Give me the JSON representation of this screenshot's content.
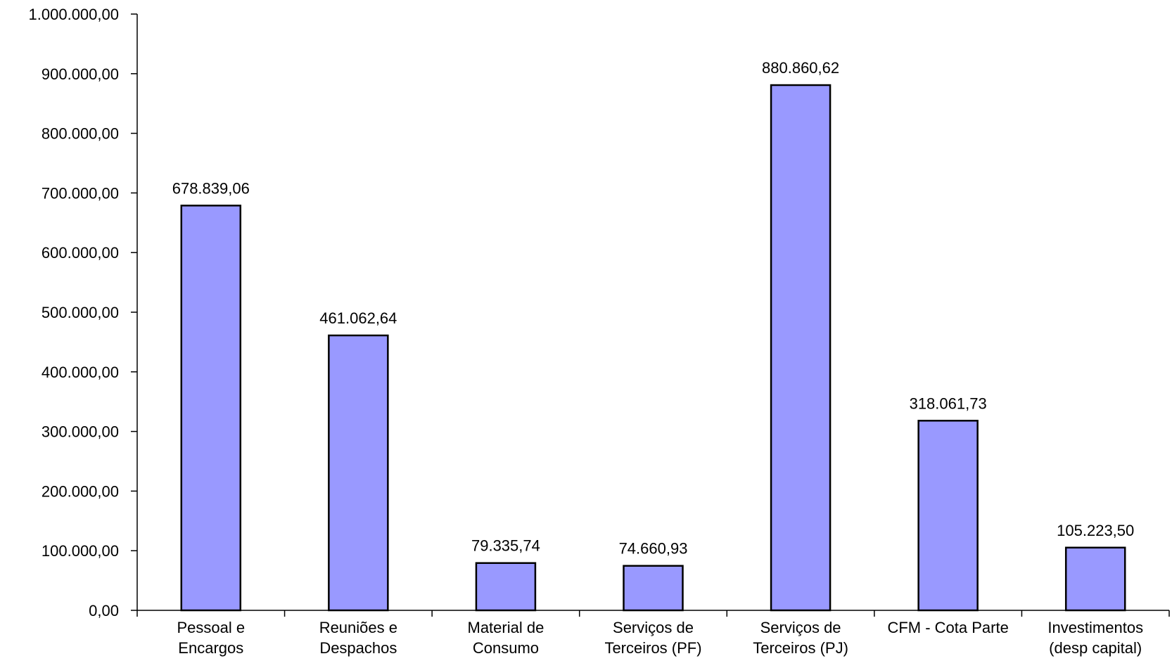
{
  "chart_data": {
    "type": "bar",
    "title": "",
    "xlabel": "",
    "ylabel": "",
    "ylim": [
      0,
      1000000
    ],
    "ytick_step": 100000,
    "yticks": [
      "0,00",
      "100.000,00",
      "200.000,00",
      "300.000,00",
      "400.000,00",
      "500.000,00",
      "600.000,00",
      "700.000,00",
      "800.000,00",
      "900.000,00",
      "1.000.000,00"
    ],
    "categories": [
      [
        "Pessoal e",
        "Encargos"
      ],
      [
        "Reuniões e",
        "Despachos"
      ],
      [
        "Material de",
        "Consumo"
      ],
      [
        "Serviços de",
        "Terceiros (PF)"
      ],
      [
        "Serviços de",
        "Terceiros (PJ)"
      ],
      [
        "CFM - Cota Parte"
      ],
      [
        "Investimentos",
        "(desp capital)"
      ]
    ],
    "values": [
      678839.06,
      461062.64,
      79335.74,
      74660.93,
      880860.62,
      318061.73,
      105223.5
    ],
    "value_labels": [
      "678.839,06",
      "461.062,64",
      "79.335,74",
      "74.660,93",
      "880.860,62",
      "318.061,73",
      "105.223,50"
    ],
    "bar_color": "#9999FF",
    "grid": false,
    "legend": "none"
  }
}
